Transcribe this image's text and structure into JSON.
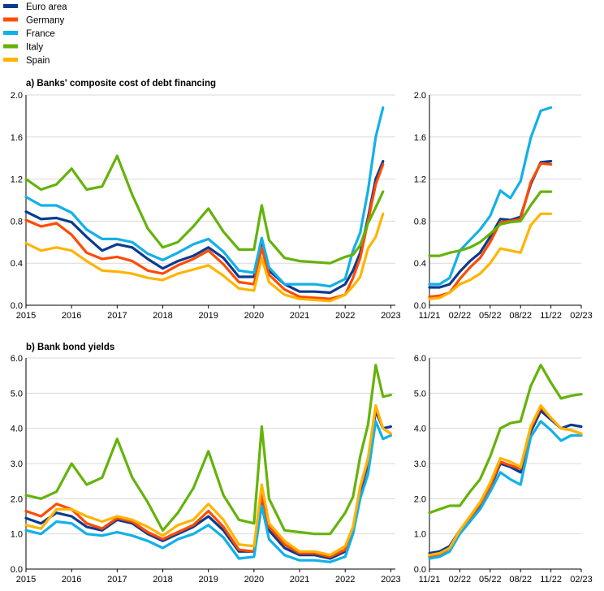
{
  "colors": {
    "Euro area": "#0b3b8f",
    "Germany": "#ff4b00",
    "France": "#12b0e8",
    "Italy": "#64b30a",
    "Spain": "#ffb400",
    "grid": "#d9d9d9"
  },
  "legend": [
    "Euro area",
    "Germany",
    "France",
    "Italy",
    "Spain"
  ],
  "chart_data": [
    {
      "type": "line",
      "panel": "a-long",
      "title": "a) Banks' composite cost of debt financing",
      "xlabel": "",
      "ylabel": "",
      "xlim": [
        2015.0,
        2023.1
      ],
      "ylim": [
        0.0,
        2.0
      ],
      "xticks": [
        "2015",
        "2016",
        "2017",
        "2018",
        "2019",
        "2020",
        "2021",
        "2022",
        "2023"
      ],
      "yticks": [
        "0.0",
        "0.4",
        "0.8",
        "1.2",
        "1.6",
        "2.0"
      ],
      "grid": true,
      "x": [
        2015.0,
        2015.33,
        2015.67,
        2016.0,
        2016.33,
        2016.67,
        2017.0,
        2017.33,
        2017.67,
        2018.0,
        2018.33,
        2018.67,
        2019.0,
        2019.33,
        2019.67,
        2020.0,
        2020.17,
        2020.33,
        2020.67,
        2021.0,
        2021.33,
        2021.67,
        2022.0,
        2022.17,
        2022.33,
        2022.5,
        2022.67,
        2022.83
      ],
      "series": [
        {
          "name": "Euro area",
          "values": [
            0.89,
            0.82,
            0.83,
            0.79,
            0.65,
            0.52,
            0.58,
            0.55,
            0.44,
            0.35,
            0.42,
            0.47,
            0.55,
            0.45,
            0.27,
            0.27,
            0.6,
            0.33,
            0.2,
            0.13,
            0.13,
            0.12,
            0.2,
            0.33,
            0.5,
            0.83,
            1.2,
            1.37
          ]
        },
        {
          "name": "Germany",
          "values": [
            0.81,
            0.75,
            0.78,
            0.67,
            0.5,
            0.44,
            0.46,
            0.42,
            0.33,
            0.3,
            0.38,
            0.44,
            0.52,
            0.39,
            0.22,
            0.2,
            0.55,
            0.29,
            0.15,
            0.08,
            0.07,
            0.06,
            0.1,
            0.26,
            0.45,
            0.8,
            1.15,
            1.34
          ]
        },
        {
          "name": "France",
          "values": [
            1.03,
            0.95,
            0.95,
            0.88,
            0.72,
            0.63,
            0.63,
            0.6,
            0.49,
            0.43,
            0.5,
            0.58,
            0.63,
            0.51,
            0.33,
            0.31,
            0.64,
            0.36,
            0.2,
            0.2,
            0.2,
            0.18,
            0.25,
            0.52,
            0.69,
            1.09,
            1.6,
            1.88
          ]
        },
        {
          "name": "Italy",
          "values": [
            1.2,
            1.1,
            1.15,
            1.3,
            1.1,
            1.13,
            1.42,
            1.05,
            0.73,
            0.55,
            0.6,
            0.75,
            0.92,
            0.7,
            0.53,
            0.53,
            0.95,
            0.62,
            0.45,
            0.42,
            0.41,
            0.4,
            0.46,
            0.48,
            0.57,
            0.78,
            0.93,
            1.08
          ]
        },
        {
          "name": "Spain",
          "values": [
            0.59,
            0.52,
            0.55,
            0.52,
            0.42,
            0.33,
            0.32,
            0.3,
            0.26,
            0.24,
            0.3,
            0.34,
            0.38,
            0.28,
            0.16,
            0.14,
            0.45,
            0.22,
            0.1,
            0.06,
            0.05,
            0.04,
            0.1,
            0.18,
            0.27,
            0.54,
            0.65,
            0.87
          ]
        }
      ]
    },
    {
      "type": "line",
      "panel": "a-zoom",
      "title": "",
      "xlabel": "",
      "ylabel": "",
      "xlim": [
        0,
        15
      ],
      "ylim": [
        0.0,
        2.0
      ],
      "xticks": [
        "11/21",
        "02/22",
        "05/22",
        "08/22",
        "11/22",
        "02/23"
      ],
      "yticks": [
        "0.0",
        "0.4",
        "0.8",
        "1.2",
        "1.6",
        "2.0"
      ],
      "grid": true,
      "x": [
        "11/21",
        "12/21",
        "01/22",
        "02/22",
        "03/22",
        "04/22",
        "05/22",
        "06/22",
        "07/22",
        "08/22",
        "09/22",
        "10/22",
        "11/22"
      ],
      "series": [
        {
          "name": "Euro area",
          "values": [
            0.17,
            0.17,
            0.2,
            0.32,
            0.42,
            0.5,
            0.65,
            0.82,
            0.81,
            0.84,
            1.15,
            1.36,
            1.37
          ]
        },
        {
          "name": "Germany",
          "values": [
            0.08,
            0.09,
            0.12,
            0.25,
            0.36,
            0.45,
            0.6,
            0.79,
            0.8,
            0.82,
            1.17,
            1.35,
            1.34
          ]
        },
        {
          "name": "France",
          "values": [
            0.2,
            0.2,
            0.26,
            0.52,
            0.62,
            0.72,
            0.85,
            1.09,
            1.02,
            1.18,
            1.59,
            1.85,
            1.88
          ]
        },
        {
          "name": "Italy",
          "values": [
            0.47,
            0.47,
            0.5,
            0.52,
            0.55,
            0.6,
            0.68,
            0.77,
            0.79,
            0.8,
            0.95,
            1.08,
            1.08
          ]
        },
        {
          "name": "Spain",
          "values": [
            0.06,
            0.07,
            0.12,
            0.2,
            0.24,
            0.3,
            0.4,
            0.54,
            0.52,
            0.5,
            0.76,
            0.87,
            0.87
          ]
        }
      ]
    },
    {
      "type": "line",
      "panel": "b-long",
      "title": "b) Bank bond yields",
      "xlabel": "",
      "ylabel": "",
      "xlim": [
        2015.0,
        2023.1
      ],
      "ylim": [
        0.0,
        6.0
      ],
      "xticks": [
        "2015",
        "2016",
        "2017",
        "2018",
        "2019",
        "2020",
        "2021",
        "2022",
        "2023"
      ],
      "yticks": [
        "0.0",
        "1.0",
        "2.0",
        "3.0",
        "4.0",
        "5.0",
        "6.0"
      ],
      "grid": true,
      "x": [
        2015.0,
        2015.33,
        2015.67,
        2016.0,
        2016.33,
        2016.67,
        2017.0,
        2017.33,
        2017.67,
        2018.0,
        2018.33,
        2018.67,
        2019.0,
        2019.33,
        2019.67,
        2020.0,
        2020.17,
        2020.33,
        2020.67,
        2021.0,
        2021.33,
        2021.67,
        2022.0,
        2022.17,
        2022.33,
        2022.5,
        2022.67,
        2022.83,
        2023.0
      ],
      "series": [
        {
          "name": "Euro area",
          "values": [
            1.45,
            1.3,
            1.6,
            1.5,
            1.2,
            1.1,
            1.4,
            1.3,
            1.0,
            0.8,
            1.0,
            1.2,
            1.5,
            1.1,
            0.5,
            0.5,
            2.0,
            1.1,
            0.6,
            0.4,
            0.4,
            0.3,
            0.5,
            1.1,
            2.2,
            3.0,
            4.5,
            4.0,
            4.05
          ]
        },
        {
          "name": "Germany",
          "values": [
            1.65,
            1.5,
            1.85,
            1.7,
            1.3,
            1.15,
            1.45,
            1.35,
            1.05,
            0.85,
            1.05,
            1.25,
            1.65,
            1.2,
            0.55,
            0.5,
            2.1,
            1.2,
            0.7,
            0.45,
            0.45,
            0.35,
            0.55,
            1.15,
            2.3,
            3.1,
            4.6,
            4.0,
            3.85
          ]
        },
        {
          "name": "France",
          "values": [
            1.1,
            1.0,
            1.35,
            1.3,
            1.0,
            0.95,
            1.05,
            0.95,
            0.8,
            0.6,
            0.85,
            1.0,
            1.25,
            0.9,
            0.3,
            0.35,
            1.8,
            0.85,
            0.4,
            0.25,
            0.25,
            0.2,
            0.35,
            1.0,
            2.0,
            2.7,
            4.2,
            3.7,
            3.8
          ]
        },
        {
          "name": "Italy",
          "values": [
            2.1,
            2.0,
            2.2,
            3.0,
            2.4,
            2.6,
            3.7,
            2.6,
            1.9,
            1.1,
            1.6,
            2.3,
            3.35,
            2.1,
            1.4,
            1.3,
            4.05,
            2.0,
            1.1,
            1.05,
            1.0,
            1.0,
            1.6,
            2.05,
            3.2,
            4.1,
            5.8,
            4.9,
            4.95
          ]
        },
        {
          "name": "Spain",
          "values": [
            1.25,
            1.15,
            1.7,
            1.7,
            1.5,
            1.35,
            1.5,
            1.4,
            1.2,
            0.95,
            1.25,
            1.4,
            1.85,
            1.4,
            0.7,
            0.65,
            2.4,
            1.3,
            0.8,
            0.5,
            0.5,
            0.4,
            0.65,
            1.2,
            2.35,
            3.15,
            4.65,
            4.0,
            3.85
          ]
        }
      ]
    },
    {
      "type": "line",
      "panel": "b-zoom",
      "title": "",
      "xlabel": "",
      "ylabel": "",
      "xlim": [
        0,
        15
      ],
      "ylim": [
        0.0,
        6.0
      ],
      "xticks": [
        "11/21",
        "02/22",
        "05/22",
        "08/22",
        "11/22",
        "02/23"
      ],
      "yticks": [
        "0.0",
        "1.0",
        "2.0",
        "3.0",
        "4.0",
        "5.0",
        "6.0"
      ],
      "grid": true,
      "x": [
        "11/21",
        "12/21",
        "01/22",
        "02/22",
        "03/22",
        "04/22",
        "05/22",
        "06/22",
        "07/22",
        "08/22",
        "09/22",
        "10/22",
        "11/22",
        "12/22",
        "01/23",
        "02/23"
      ],
      "series": [
        {
          "name": "Euro area",
          "values": [
            0.45,
            0.5,
            0.65,
            1.1,
            1.45,
            1.8,
            2.3,
            3.0,
            2.9,
            2.75,
            3.9,
            4.5,
            4.25,
            4.0,
            4.1,
            4.05
          ]
        },
        {
          "name": "Germany",
          "values": [
            0.35,
            0.4,
            0.6,
            1.1,
            1.45,
            1.85,
            2.35,
            3.05,
            2.95,
            2.85,
            4.0,
            4.6,
            4.3,
            4.0,
            3.95,
            3.85
          ]
        },
        {
          "name": "France",
          "values": [
            0.3,
            0.35,
            0.5,
            1.0,
            1.35,
            1.7,
            2.2,
            2.75,
            2.55,
            2.4,
            3.75,
            4.2,
            3.95,
            3.65,
            3.8,
            3.8
          ]
        },
        {
          "name": "Italy",
          "values": [
            1.6,
            1.7,
            1.8,
            1.8,
            2.2,
            2.55,
            3.2,
            4.0,
            4.15,
            4.2,
            5.2,
            5.8,
            5.3,
            4.85,
            4.93,
            4.97
          ]
        },
        {
          "name": "Spain",
          "values": [
            0.4,
            0.45,
            0.6,
            1.1,
            1.5,
            1.9,
            2.45,
            3.15,
            3.05,
            2.9,
            4.05,
            4.65,
            4.3,
            4.0,
            3.95,
            3.85
          ]
        }
      ]
    }
  ]
}
